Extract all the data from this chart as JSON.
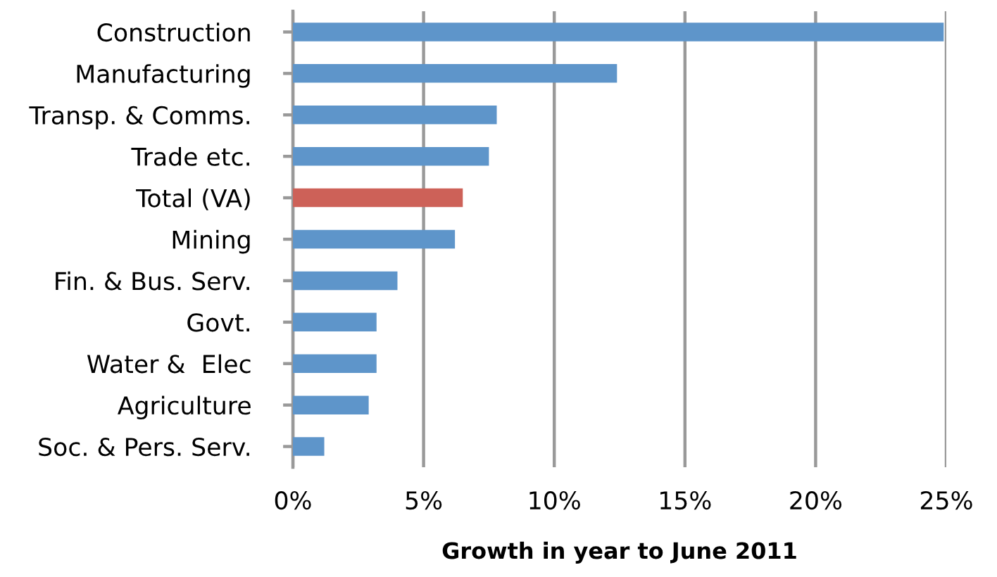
{
  "chart_data": {
    "type": "bar",
    "orientation": "horizontal",
    "xlabel": "Growth in year to June 2011",
    "categories": [
      "Construction",
      "Manufacturing",
      "Transp. & Comms.",
      "Trade etc.",
      "Total (VA)",
      "Mining",
      "Fin. & Bus. Serv.",
      "Govt.",
      "Water &  Elec",
      "Agriculture",
      "Soc. & Pers. Serv."
    ],
    "values": [
      24.9,
      12.4,
      7.8,
      7.5,
      6.5,
      6.2,
      4.0,
      3.2,
      3.2,
      2.9,
      1.2
    ],
    "colors": [
      "#5e95ca",
      "#5e95ca",
      "#5e95ca",
      "#5e95ca",
      "#cd6158",
      "#5e95ca",
      "#5e95ca",
      "#5e95ca",
      "#5e95ca",
      "#5e95ca",
      "#5e95ca"
    ],
    "xlim": [
      0,
      25
    ],
    "xticks": [
      {
        "value": 0,
        "label": "0%"
      },
      {
        "value": 5,
        "label": "5%"
      },
      {
        "value": 10,
        "label": "10%"
      },
      {
        "value": 15,
        "label": "15%"
      },
      {
        "value": 20,
        "label": "20%"
      },
      {
        "value": 25,
        "label": "25%"
      }
    ],
    "grid": "x",
    "legend": false
  }
}
